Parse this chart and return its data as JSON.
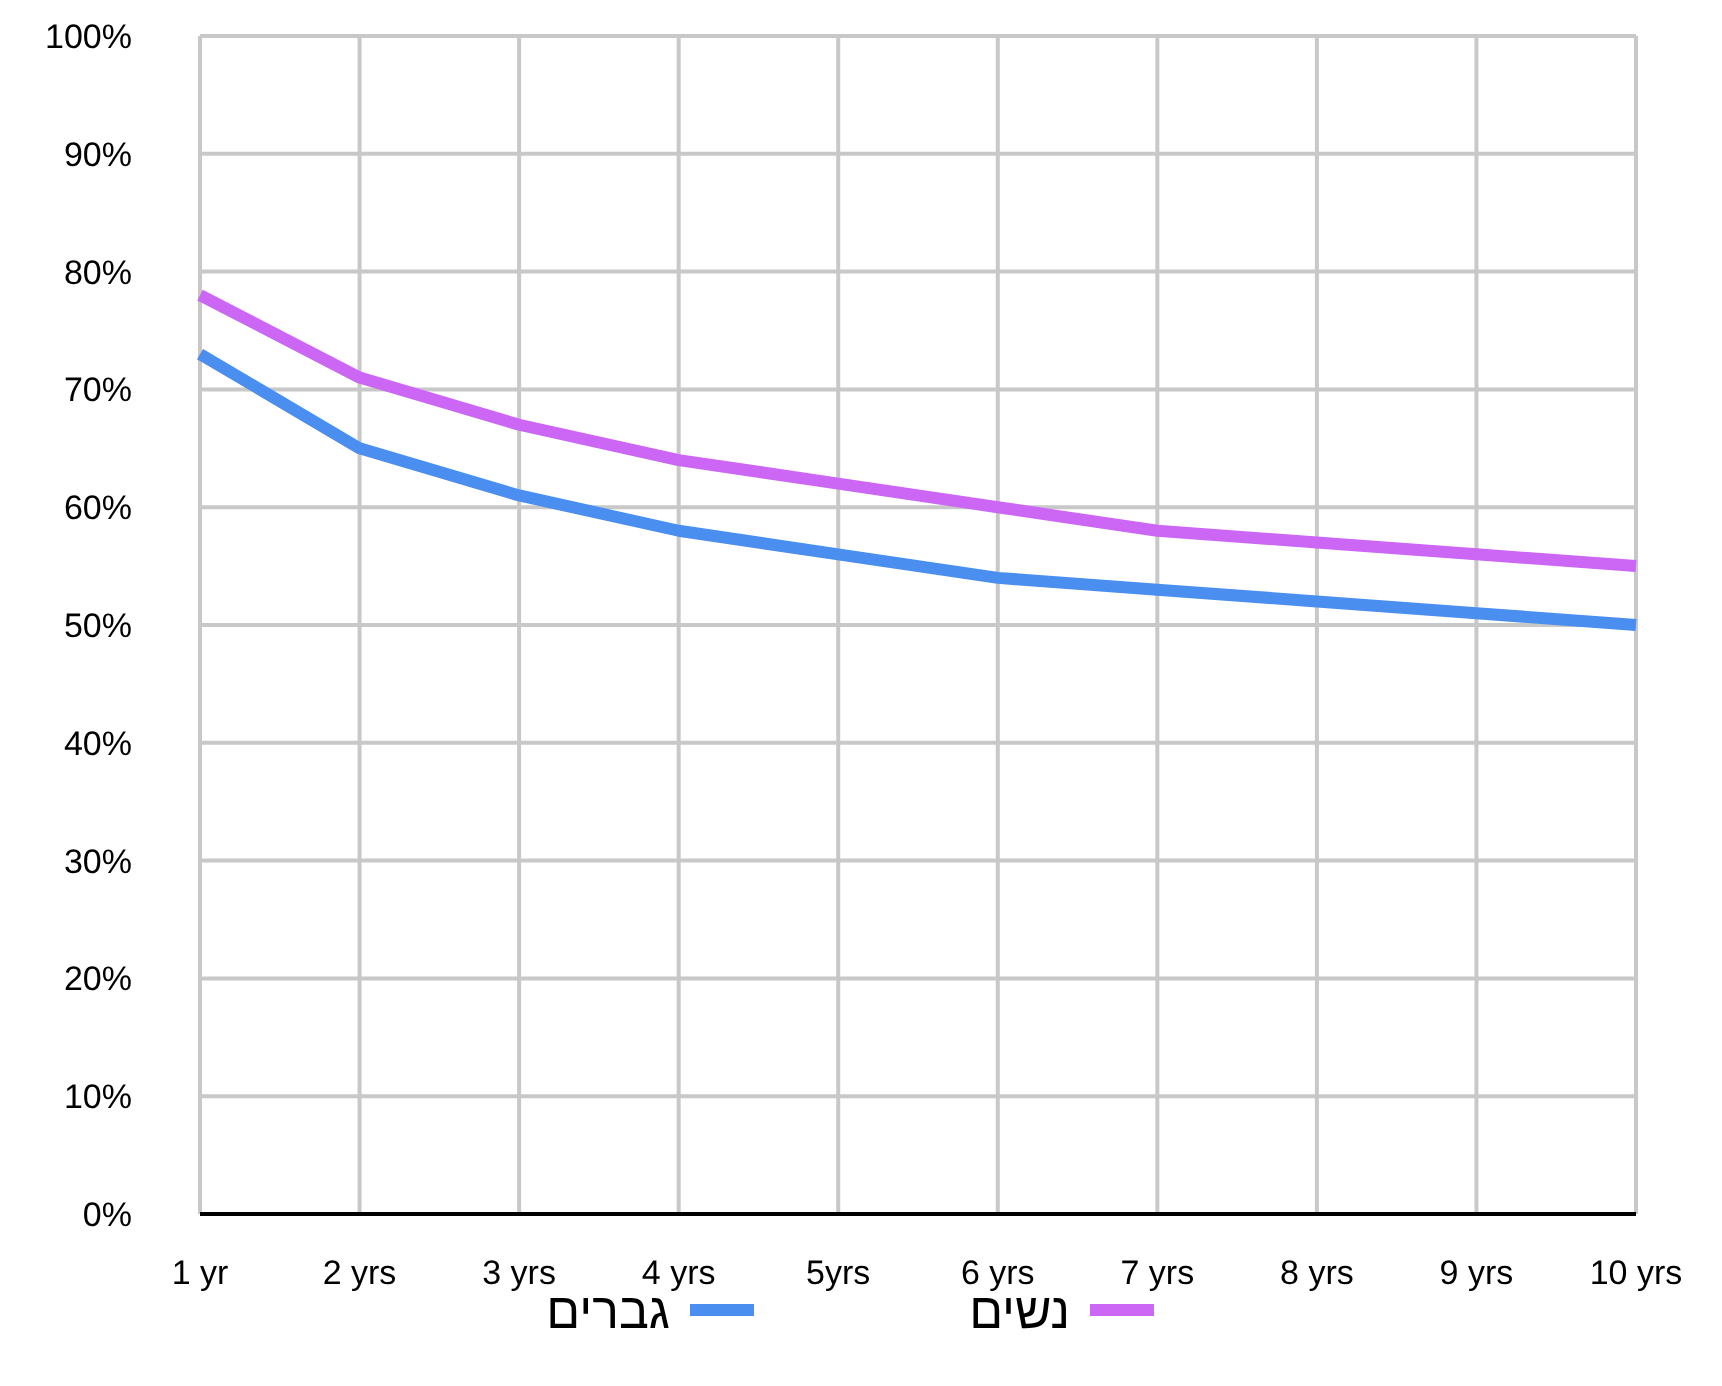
{
  "chart_data": {
    "type": "line",
    "categories": [
      "1 yr",
      "2 yrs",
      "3 yrs",
      "4 yrs",
      "5yrs",
      "6 yrs",
      "7 yrs",
      "8 yrs",
      "9 yrs",
      "10 yrs"
    ],
    "series": [
      {
        "name": "גברים",
        "color": "#4a8ff0",
        "values": [
          73,
          65,
          61,
          58,
          56,
          54,
          53,
          52,
          51,
          50
        ]
      },
      {
        "name": "נשים",
        "color": "#cc66f5",
        "values": [
          78,
          71,
          67,
          64,
          62,
          60,
          58,
          57,
          56,
          55
        ]
      }
    ],
    "ylim": [
      0,
      100
    ],
    "yticks": [
      {
        "value": 0,
        "label": "0%"
      },
      {
        "value": 10,
        "label": "10%"
      },
      {
        "value": 20,
        "label": "20%"
      },
      {
        "value": 30,
        "label": "30%"
      },
      {
        "value": 40,
        "label": "40%"
      },
      {
        "value": 50,
        "label": "50%"
      },
      {
        "value": 60,
        "label": "60%"
      },
      {
        "value": 70,
        "label": "70%"
      },
      {
        "value": 80,
        "label": "80%"
      },
      {
        "value": 90,
        "label": "90%"
      },
      {
        "value": 100,
        "label": "100%"
      }
    ],
    "grid": true,
    "legend": "bottom",
    "marker": "none",
    "line_style": "solid"
  }
}
